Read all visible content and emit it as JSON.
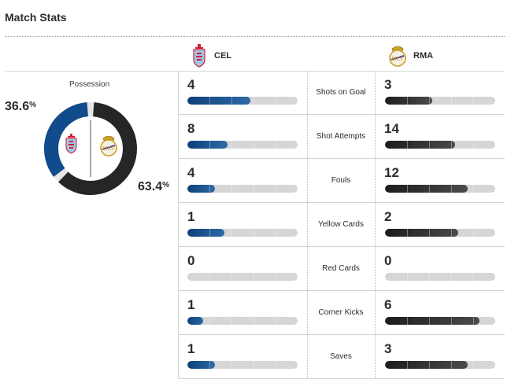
{
  "header": {
    "title": "Match Stats"
  },
  "teams": {
    "home": {
      "abbr": "CEL",
      "color": "#124b8c"
    },
    "away": {
      "abbr": "RMA",
      "color": "#262626"
    }
  },
  "possession": {
    "label": "Possession",
    "home_pct": 36.6,
    "away_pct": 63.4,
    "home_text": "36.6",
    "away_text": "63.4",
    "unit": "%"
  },
  "stats": [
    {
      "label": "Shots on Goal",
      "home": "4",
      "away": "3"
    },
    {
      "label": "Shot Attempts",
      "home": "8",
      "away": "14"
    },
    {
      "label": "Fouls",
      "home": "4",
      "away": "12"
    },
    {
      "label": "Yellow Cards",
      "home": "1",
      "away": "2"
    },
    {
      "label": "Red Cards",
      "home": "0",
      "away": "0"
    },
    {
      "label": "Corner Kicks",
      "home": "1",
      "away": "6"
    },
    {
      "label": "Saves",
      "home": "1",
      "away": "3"
    }
  ]
}
